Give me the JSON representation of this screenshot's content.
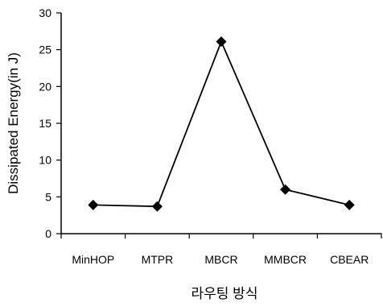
{
  "chart_data": {
    "type": "line",
    "categories": [
      "MinHOP",
      "MTPR",
      "MBCR",
      "MMBCR",
      "CBEAR"
    ],
    "series": [
      {
        "values": [
          3.9,
          3.7,
          26.1,
          6.0,
          3.9
        ]
      }
    ],
    "title": "",
    "xlabel": "라우팅 방식",
    "ylabel": "Dissipated Energy(in J)",
    "ylim": [
      0,
      30
    ],
    "yticks": [
      0,
      5,
      10,
      15,
      20,
      25,
      30
    ],
    "grid": false,
    "marker": "diamond",
    "line_color": "#000000",
    "marker_color": "#000000"
  }
}
